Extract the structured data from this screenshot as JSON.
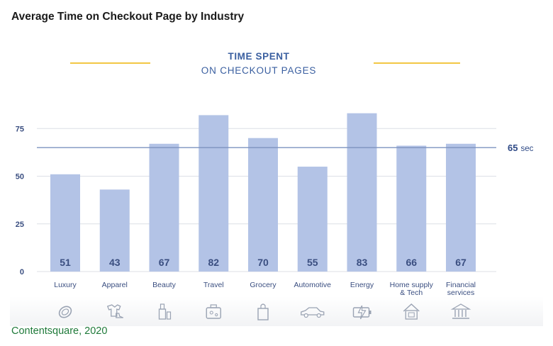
{
  "header": {
    "title": "Average Time on Checkout Page by Industry"
  },
  "chart_data": {
    "type": "bar",
    "title": "TIME SPENT",
    "subtitle": "ON CHECKOUT PAGES",
    "categories": [
      "Luxury",
      "Apparel",
      "Beauty",
      "Travel",
      "Grocery",
      "Automotive",
      "Energy",
      "Home supply & Tech",
      "Financial services"
    ],
    "category_lines": [
      [
        "Luxury"
      ],
      [
        "Apparel"
      ],
      [
        "Beauty"
      ],
      [
        "Travel"
      ],
      [
        "Grocery"
      ],
      [
        "Automotive"
      ],
      [
        "Energy"
      ],
      [
        "Home supply",
        "& Tech"
      ],
      [
        "Financial",
        "services"
      ]
    ],
    "values": [
      51,
      43,
      67,
      82,
      70,
      55,
      83,
      66,
      67
    ],
    "yticks": [
      0,
      25,
      50,
      75
    ],
    "ylim": [
      0,
      90
    ],
    "grid": true,
    "reference_line": {
      "value": 65,
      "label_value": "65",
      "label_unit": "sec"
    },
    "bar_color": "#b3c3e6",
    "label_color": "#3a4e80",
    "icons": [
      "ring-icon",
      "shirt-and-shoe-icon",
      "cosmetics-icon",
      "suitcase-icon",
      "shopping-bag-icon",
      "car-icon",
      "battery-charge-icon",
      "house-icon",
      "bank-icon"
    ]
  },
  "source": {
    "text": "Contentsquare, 2020"
  }
}
